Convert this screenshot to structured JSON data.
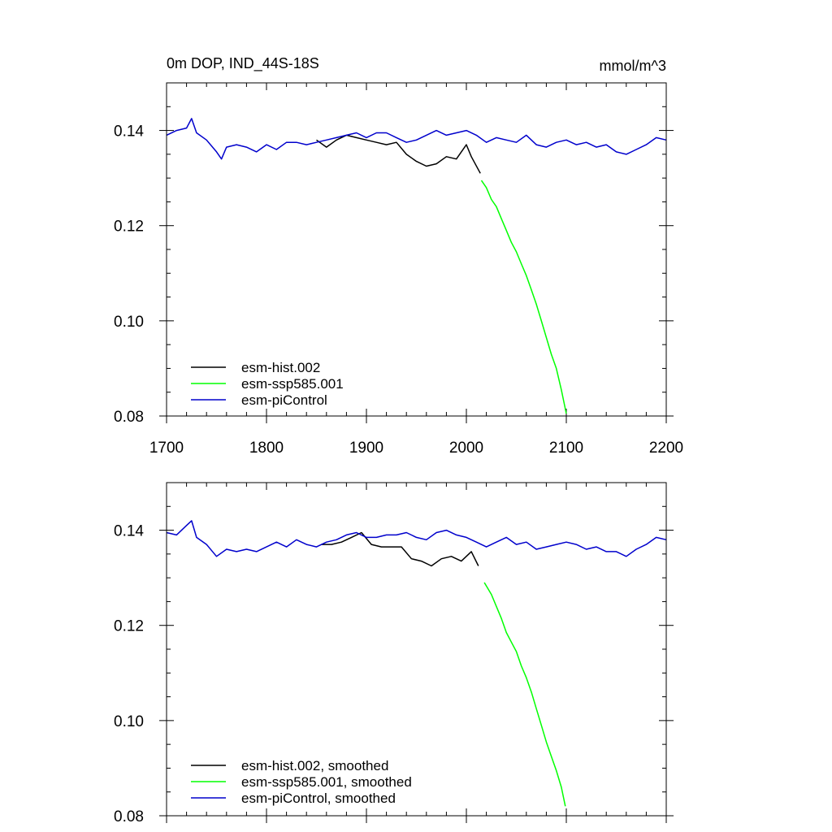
{
  "chart_data": [
    {
      "type": "line",
      "title": "0m DOP, IND_44S-18S",
      "units": "mmol/m^3",
      "xlim": [
        1700,
        2200
      ],
      "ylim": [
        0.08,
        0.15
      ],
      "xticks": [
        "1700",
        "1800",
        "1900",
        "2000",
        "2100",
        "2200"
      ],
      "yticks": [
        "0.08",
        "0.10",
        "0.12",
        "0.14"
      ],
      "legend_position": "bottom-left",
      "series": [
        {
          "name": "esm-hist.002",
          "color": "#000000",
          "x": [
            1850,
            1860,
            1870,
            1880,
            1890,
            1900,
            1910,
            1920,
            1930,
            1940,
            1950,
            1960,
            1970,
            1980,
            1990,
            2000,
            2005,
            2014
          ],
          "y": [
            0.138,
            0.1365,
            0.138,
            0.139,
            0.1385,
            0.138,
            0.1375,
            0.137,
            0.1375,
            0.135,
            0.1335,
            0.1325,
            0.133,
            0.1345,
            0.134,
            0.137,
            0.1345,
            0.131
          ]
        },
        {
          "name": "esm-ssp585.001",
          "color": "#00ff00",
          "x": [
            2015,
            2020,
            2025,
            2030,
            2035,
            2040,
            2045,
            2050,
            2055,
            2060,
            2065,
            2070,
            2075,
            2080,
            2085,
            2090,
            2095,
            2100
          ],
          "y": [
            0.1295,
            0.128,
            0.1255,
            0.124,
            0.1215,
            0.119,
            0.1165,
            0.1145,
            0.112,
            0.1095,
            0.1065,
            0.1035,
            0.1,
            0.0965,
            0.093,
            0.09,
            0.0855,
            0.0805
          ]
        },
        {
          "name": "esm-piControl",
          "color": "#0000cc",
          "x": [
            1700,
            1710,
            1720,
            1725,
            1730,
            1740,
            1750,
            1755,
            1760,
            1770,
            1780,
            1790,
            1800,
            1810,
            1820,
            1830,
            1840,
            1850,
            1860,
            1870,
            1880,
            1890,
            1900,
            1910,
            1920,
            1930,
            1940,
            1950,
            1960,
            1970,
            1980,
            1990,
            2000,
            2010,
            2020,
            2030,
            2040,
            2050,
            2060,
            2070,
            2080,
            2090,
            2100,
            2110,
            2120,
            2130,
            2140,
            2150,
            2160,
            2170,
            2180,
            2190,
            2200
          ],
          "y": [
            0.139,
            0.14,
            0.1405,
            0.1425,
            0.1395,
            0.138,
            0.1355,
            0.134,
            0.1365,
            0.137,
            0.1365,
            0.1355,
            0.137,
            0.136,
            0.1375,
            0.1375,
            0.137,
            0.1375,
            0.138,
            0.1385,
            0.139,
            0.1395,
            0.1385,
            0.1395,
            0.1395,
            0.1385,
            0.1375,
            0.138,
            0.139,
            0.14,
            0.139,
            0.1395,
            0.14,
            0.139,
            0.1375,
            0.1385,
            0.138,
            0.1375,
            0.139,
            0.137,
            0.1365,
            0.1375,
            0.138,
            0.137,
            0.1375,
            0.1365,
            0.137,
            0.1355,
            0.135,
            0.136,
            0.137,
            0.1385,
            0.138
          ]
        }
      ]
    },
    {
      "type": "line",
      "xlim": [
        1700,
        2200
      ],
      "ylim": [
        0.08,
        0.15
      ],
      "yticks": [
        "0.08",
        "0.10",
        "0.12",
        "0.14"
      ],
      "legend_position": "bottom-left",
      "series": [
        {
          "name": "esm-hist.002, smoothed",
          "color": "#000000",
          "x": [
            1855,
            1865,
            1875,
            1885,
            1895,
            1905,
            1915,
            1925,
            1935,
            1945,
            1955,
            1965,
            1975,
            1985,
            1995,
            2005,
            2012
          ],
          "y": [
            0.137,
            0.137,
            0.1375,
            0.1385,
            0.1395,
            0.137,
            0.1365,
            0.1365,
            0.1365,
            0.134,
            0.1335,
            0.1325,
            0.134,
            0.1345,
            0.1335,
            0.1355,
            0.1325
          ]
        },
        {
          "name": "esm-ssp585.001, smoothed",
          "color": "#00ff00",
          "x": [
            2018,
            2025,
            2030,
            2035,
            2040,
            2045,
            2050,
            2055,
            2060,
            2065,
            2070,
            2075,
            2080,
            2085,
            2090,
            2095,
            2099
          ],
          "y": [
            0.129,
            0.1265,
            0.124,
            0.1215,
            0.1185,
            0.1165,
            0.1145,
            0.1115,
            0.109,
            0.106,
            0.1025,
            0.099,
            0.0955,
            0.0925,
            0.0895,
            0.086,
            0.082
          ]
        },
        {
          "name": "esm-piControl, smoothed",
          "color": "#0000cc",
          "x": [
            1700,
            1710,
            1720,
            1725,
            1730,
            1740,
            1750,
            1760,
            1770,
            1780,
            1790,
            1800,
            1810,
            1820,
            1830,
            1840,
            1850,
            1860,
            1870,
            1880,
            1890,
            1900,
            1910,
            1920,
            1930,
            1940,
            1950,
            1960,
            1970,
            1980,
            1990,
            2000,
            2010,
            2020,
            2030,
            2040,
            2050,
            2060,
            2070,
            2080,
            2090,
            2100,
            2110,
            2120,
            2130,
            2140,
            2150,
            2160,
            2170,
            2180,
            2190,
            2200
          ],
          "y": [
            0.1395,
            0.139,
            0.141,
            0.142,
            0.1385,
            0.137,
            0.1345,
            0.136,
            0.1355,
            0.136,
            0.1355,
            0.1365,
            0.1375,
            0.1365,
            0.138,
            0.137,
            0.1365,
            0.1375,
            0.138,
            0.139,
            0.1395,
            0.1385,
            0.1385,
            0.139,
            0.139,
            0.1395,
            0.1385,
            0.138,
            0.1395,
            0.14,
            0.139,
            0.1385,
            0.1375,
            0.1365,
            0.1375,
            0.1385,
            0.137,
            0.1375,
            0.136,
            0.1365,
            0.137,
            0.1375,
            0.137,
            0.136,
            0.1365,
            0.1355,
            0.1355,
            0.1345,
            0.136,
            0.137,
            0.1385,
            0.138
          ]
        }
      ]
    }
  ]
}
